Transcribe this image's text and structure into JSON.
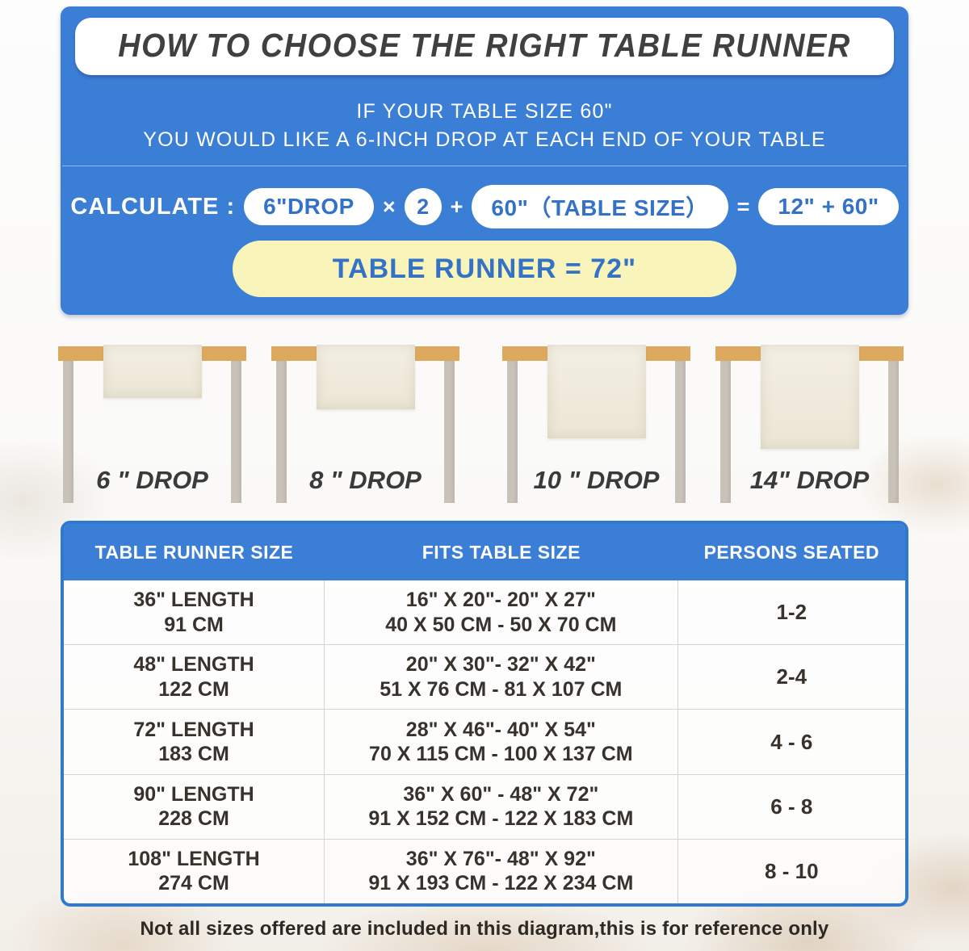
{
  "colors": {
    "panel_blue": "#3b7ed6",
    "accent_text_blue": "#3472c7",
    "result_yellow": "#f9f4ba",
    "tabletop_tan": "#dca95f",
    "leg_gray": "#c9c2b9",
    "runner_cream": "#f0ebde",
    "title_dark": "#404040",
    "table_border_blue": "#2e7ad2"
  },
  "header": {
    "title": "HOW TO CHOOSE THE RIGHT TABLE RUNNER",
    "line1": "IF YOUR TABLE SIZE 60\"",
    "line2": "YOU WOULD LIKE A 6-INCH DROP AT EACH END OF YOUR TABLE"
  },
  "calc": {
    "label": "CALCULATE :",
    "drop": "6\"DROP",
    "times": "×",
    "two": "2",
    "plus": "+",
    "size": "60\"（TABLE SIZE）",
    "eq": "=",
    "sum": "12\" + 60\"",
    "result": "TABLE RUNNER = 72\""
  },
  "drops": [
    "6 \" DROP",
    "8 \" DROP",
    "10 \" DROP",
    "14\" DROP"
  ],
  "size_table": {
    "headers": [
      "TABLE RUNNER SIZE",
      "FITS TABLE SIZE",
      "PERSONS SEATED"
    ],
    "rows": [
      {
        "runner_size": [
          "36\" LENGTH",
          "91 CM"
        ],
        "fits": [
          "16\" X 20\"- 20\" X 27\"",
          "40 X 50 CM - 50 X 70 CM"
        ],
        "persons": "1-2"
      },
      {
        "runner_size": [
          "48\" LENGTH",
          "122 CM"
        ],
        "fits": [
          "20\" X 30\"- 32\" X 42\"",
          "51 X 76 CM - 81 X 107 CM"
        ],
        "persons": "2-4"
      },
      {
        "runner_size": [
          "72\" LENGTH",
          "183 CM"
        ],
        "fits": [
          "28\" X 46\"- 40\" X 54\"",
          "70 X 115 CM - 100 X 137 CM"
        ],
        "persons": "4 - 6"
      },
      {
        "runner_size": [
          "90\" LENGTH",
          "228 CM"
        ],
        "fits": [
          "36\" X 60\" - 48\" X 72\"",
          "91 X 152 CM - 122 X 183 CM"
        ],
        "persons": "6 - 8"
      },
      {
        "runner_size": [
          "108\" LENGTH",
          "274 CM"
        ],
        "fits": [
          "36\" X 76\"- 48\" X 92\"",
          "91 X 193 CM - 122 X 234 CM"
        ],
        "persons": "8 - 10"
      }
    ]
  },
  "footer_note": "Not all sizes offered are included in this diagram,this is for reference only"
}
